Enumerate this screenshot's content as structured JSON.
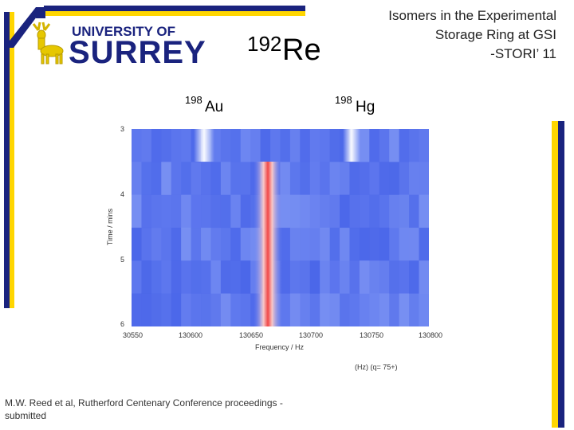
{
  "logo": {
    "line1": "UNIVERSITY OF",
    "line2": "SURREY"
  },
  "title": {
    "lines": [
      "Isomers in the Experimental",
      "Storage Ring at GSI",
      "-STORI’ 11"
    ]
  },
  "nuclide": {
    "mass": "192",
    "symbol": "Re"
  },
  "peak_labels": [
    {
      "mass": "198",
      "symbol": "Au"
    },
    {
      "mass": "198",
      "symbol": "Hg"
    }
  ],
  "plot": {
    "y_label": "Time / mins",
    "y_ticks": [
      "3",
      "4",
      "5",
      "6"
    ],
    "x_label": "Frequency / Hz",
    "x_ticks": [
      "30550",
      "130600",
      "130650",
      "130700",
      "130750",
      "130800"
    ]
  },
  "note": "(Hz) (q= 75+)",
  "citation": "M.W. Reed et al, Rutherford Centenary Conference proceedings - submitted"
}
